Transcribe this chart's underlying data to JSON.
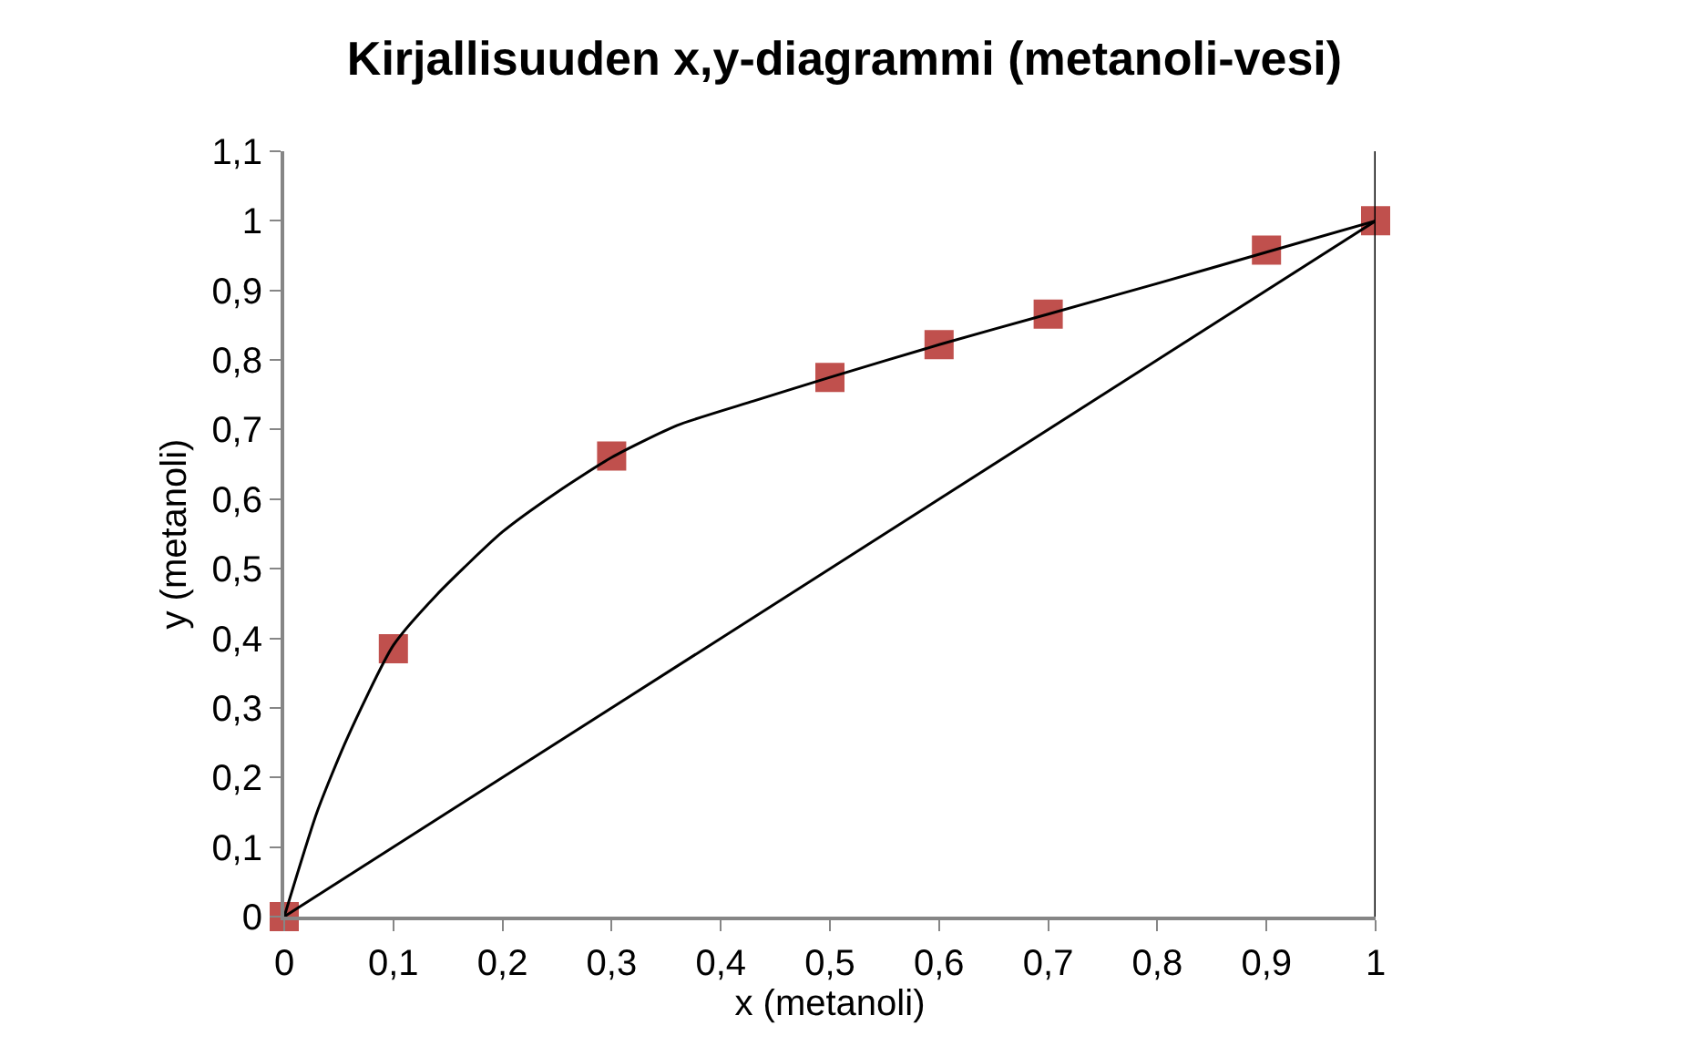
{
  "chart_data": {
    "type": "scatter",
    "title": "Kirjallisuuden x,y-diagrammi (metanoli-vesi)",
    "xlabel": "x (metanoli)",
    "ylabel": "y (metanoli)",
    "x": [
      0,
      0.1,
      0.3,
      0.5,
      0.6,
      0.7,
      0.9,
      1
    ],
    "series": [
      {
        "color": "#c0504d",
        "marker": "square",
        "values": [
          0,
          0.385,
          0.662,
          0.775,
          0.822,
          0.866,
          0.958,
          1
        ]
      },
      {
        "type": "line",
        "color": "#000000",
        "marker": "none",
        "x": [
          0,
          0.03,
          0.057,
          0.1,
          0.14,
          0.2,
          0.25,
          0.3,
          0.36,
          0.43,
          0.5,
          0.6,
          0.7,
          0.8,
          0.9,
          1
        ],
        "values": [
          0,
          0.15,
          0.254,
          0.39,
          0.463,
          0.553,
          0.61,
          0.66,
          0.706,
          0.741,
          0.775,
          0.822,
          0.866,
          0.91,
          0.955,
          1
        ]
      },
      {
        "type": "line",
        "color": "#000000",
        "marker": "none",
        "x": [
          0,
          1
        ],
        "values": [
          0,
          1
        ]
      }
    ],
    "ref_lines": [
      {
        "axis": "x",
        "value": 1,
        "color": "#000000"
      }
    ],
    "xlim": [
      0,
      1
    ],
    "ylim": [
      0,
      1.1
    ],
    "xticks": [
      0,
      {
        "value": 0.1,
        "label": "0,1"
      },
      {
        "value": 0.2,
        "label": "0,2"
      },
      {
        "value": 0.3,
        "label": "0,3"
      },
      {
        "value": 0.4,
        "label": "0,4"
      },
      {
        "value": 0.5,
        "label": "0,5"
      },
      {
        "value": 0.6,
        "label": "0,6"
      },
      {
        "value": 0.7,
        "label": "0,7"
      },
      {
        "value": 0.8,
        "label": "0,8"
      },
      {
        "value": 0.9,
        "label": "0,9"
      },
      1
    ],
    "yticks": [
      0,
      {
        "value": 0.1,
        "label": "0,1"
      },
      {
        "value": 0.2,
        "label": "0,2"
      },
      {
        "value": 0.3,
        "label": "0,3"
      },
      {
        "value": 0.4,
        "label": "0,4"
      },
      {
        "value": 0.5,
        "label": "0,5"
      },
      {
        "value": 0.6,
        "label": "0,6"
      },
      {
        "value": 0.7,
        "label": "0,7"
      },
      {
        "value": 0.8,
        "label": "0,8"
      },
      {
        "value": 0.9,
        "label": "0,9"
      },
      1,
      {
        "value": 1.1,
        "label": "1,1"
      }
    ]
  }
}
